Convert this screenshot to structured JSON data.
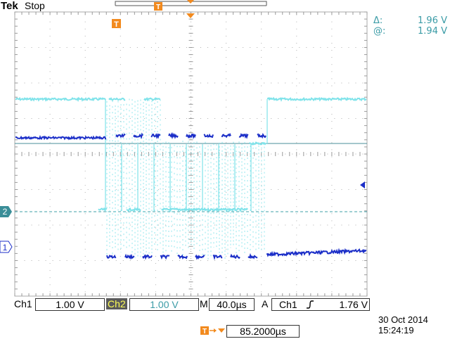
{
  "header": {
    "brand": "Tek",
    "run_state": "Stop",
    "trigger_marker": "T"
  },
  "cursor_readout": {
    "delta_label": "Δ:",
    "delta_value": "1.96 V",
    "at_label": "@:",
    "at_value": "1.94 V"
  },
  "channel_markers": {
    "ch1": "1",
    "ch2": "2"
  },
  "status_bar": {
    "ch1_label": "Ch1",
    "ch1_scale": "1.00 V",
    "ch2_label": "Ch2",
    "ch2_scale": "1.00 V",
    "timebase_label": "M",
    "timebase_value": "40.0µs",
    "trigger_mode": "A",
    "trigger_source": "Ch1",
    "trigger_slope_icon": "rising-edge-icon",
    "trigger_level": "1.76 V",
    "trigger_offset_icon": "trigger-position-icon",
    "trigger_offset": "85.2000µs"
  },
  "datetime": {
    "date": "30 Oct  2014",
    "time": "15:24:19"
  },
  "colors": {
    "ch1": "#1c2fc8",
    "ch2": "#7fe3ea",
    "trigger": "#f28a1e",
    "grid": "#9a9a9a",
    "readout": "#3a9ba6"
  }
}
